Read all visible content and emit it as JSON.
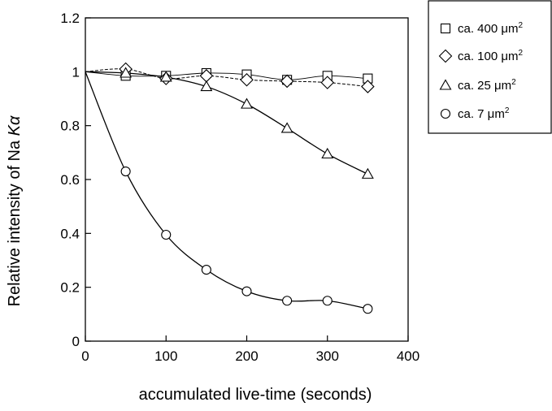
{
  "chart_data": {
    "type": "scatter",
    "title": "",
    "xlabel": "accumulated live-time (seconds)",
    "ylabel_prefix": "Relative intensity of Na ",
    "ylabel_italic": "Kα",
    "xlim": [
      0,
      400
    ],
    "ylim": [
      0,
      1.2
    ],
    "xticks": [
      "0",
      "100",
      "200",
      "300",
      "400"
    ],
    "yticks": [
      "0",
      "0.2",
      "0.4",
      "0.6",
      "0.8",
      "1",
      "1.2"
    ],
    "grid": false,
    "legend_position": "top-right, outside plot",
    "series": [
      {
        "name": "ca. 400 μm²",
        "name_prefix": "ca. 400 μm",
        "name_sup": "2",
        "marker": "square",
        "line": "solid-thin",
        "x": [
          0,
          50,
          100,
          150,
          200,
          250,
          300,
          350
        ],
        "y": [
          1.0,
          0.985,
          0.985,
          0.995,
          0.99,
          0.97,
          0.985,
          0.975
        ]
      },
      {
        "name": "ca. 100 μm²",
        "name_prefix": "ca. 100 μm",
        "name_sup": "2",
        "marker": "diamond",
        "line": "dashed",
        "x": [
          0,
          50,
          100,
          150,
          200,
          250,
          300,
          350
        ],
        "y": [
          1.0,
          1.01,
          0.975,
          0.985,
          0.97,
          0.965,
          0.96,
          0.945
        ]
      },
      {
        "name": "ca. 25 μm²",
        "name_prefix": "ca. 25 μm",
        "name_sup": "2",
        "marker": "triangle",
        "line": "solid",
        "x": [
          0,
          50,
          100,
          150,
          200,
          250,
          300,
          350
        ],
        "y": [
          1.0,
          0.995,
          0.98,
          0.945,
          0.88,
          0.79,
          0.695,
          0.62
        ]
      },
      {
        "name": "ca. 7 μm²",
        "name_prefix": "ca. 7 μm",
        "name_sup": "2",
        "marker": "circle",
        "line": "solid",
        "x": [
          0,
          50,
          100,
          150,
          200,
          250,
          300,
          350
        ],
        "y": [
          1.0,
          0.63,
          0.395,
          0.265,
          0.185,
          0.15,
          0.15,
          0.12
        ]
      }
    ]
  }
}
